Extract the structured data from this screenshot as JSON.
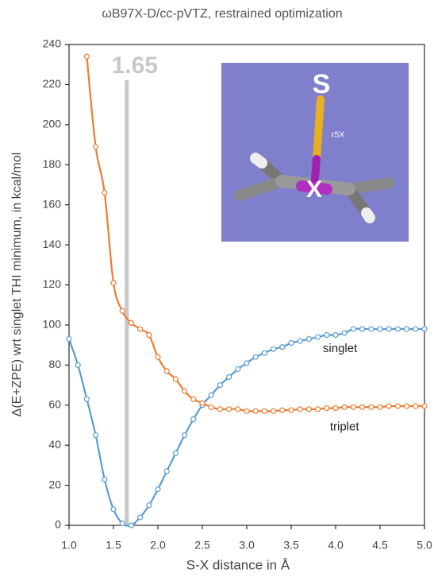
{
  "chart_data": {
    "type": "line",
    "title": "ωB97X-D/cc-pVTZ, restrained optimization",
    "x_label": "S-X distance in Å",
    "y_label": "Δ(E+ZPE) wrt singlet THI minimum, in kcal/mol",
    "x": [
      1.0,
      1.1,
      1.2,
      1.3,
      1.4,
      1.5,
      1.6,
      1.7,
      1.8,
      1.9,
      2.0,
      2.1,
      2.2,
      2.3,
      2.4,
      2.5,
      2.6,
      2.7,
      2.8,
      2.9,
      3.0,
      3.1,
      3.2,
      3.3,
      3.4,
      3.5,
      3.6,
      3.7,
      3.8,
      3.9,
      4.0,
      4.1,
      4.2,
      4.3,
      4.4,
      4.5,
      4.6,
      4.7,
      4.8,
      4.9,
      5.0
    ],
    "series": [
      {
        "name": "singlet",
        "color": "#5b9bd5",
        "values": [
          93,
          80,
          63,
          45,
          23,
          8,
          1,
          0,
          4,
          10,
          18,
          27,
          36,
          45,
          53,
          60,
          65,
          70,
          74,
          78,
          81,
          84,
          86,
          88,
          89,
          91,
          92,
          93,
          94,
          95,
          95,
          96,
          98,
          98,
          98,
          98,
          98,
          98,
          98,
          98,
          98
        ]
      },
      {
        "name": "triplet",
        "color": "#ed7d31",
        "values": [
          null,
          null,
          234,
          189,
          166,
          121,
          107,
          101,
          98,
          95,
          84,
          77,
          73,
          67,
          63,
          61,
          59,
          58,
          58,
          58,
          57,
          57,
          57,
          57,
          57.5,
          57.5,
          58,
          58,
          58,
          58.5,
          58.5,
          59,
          59,
          59,
          59,
          59,
          59.5,
          59.5,
          59.5,
          59.5,
          59.5
        ]
      }
    ],
    "xlim": [
      1.0,
      5.0
    ],
    "xticks": [
      {
        "value": 1.0,
        "label": "1.0"
      },
      1.5,
      {
        "value": 2.0,
        "label": "2.0"
      },
      2.5,
      {
        "value": 3.0,
        "label": "3.0"
      },
      3.5,
      {
        "value": 4.0,
        "label": "4.0"
      },
      4.5,
      {
        "value": 5.0,
        "label": "5.0"
      }
    ],
    "ylim": [
      0,
      240
    ],
    "yticks": [
      0,
      20,
      40,
      60,
      80,
      100,
      120,
      140,
      160,
      180,
      200,
      220,
      240
    ],
    "marker_line": {
      "label": "1.65",
      "x": 1.65,
      "color": "#c8c8c8"
    },
    "inset_labels": [
      "S",
      "X",
      "rSX"
    ]
  }
}
